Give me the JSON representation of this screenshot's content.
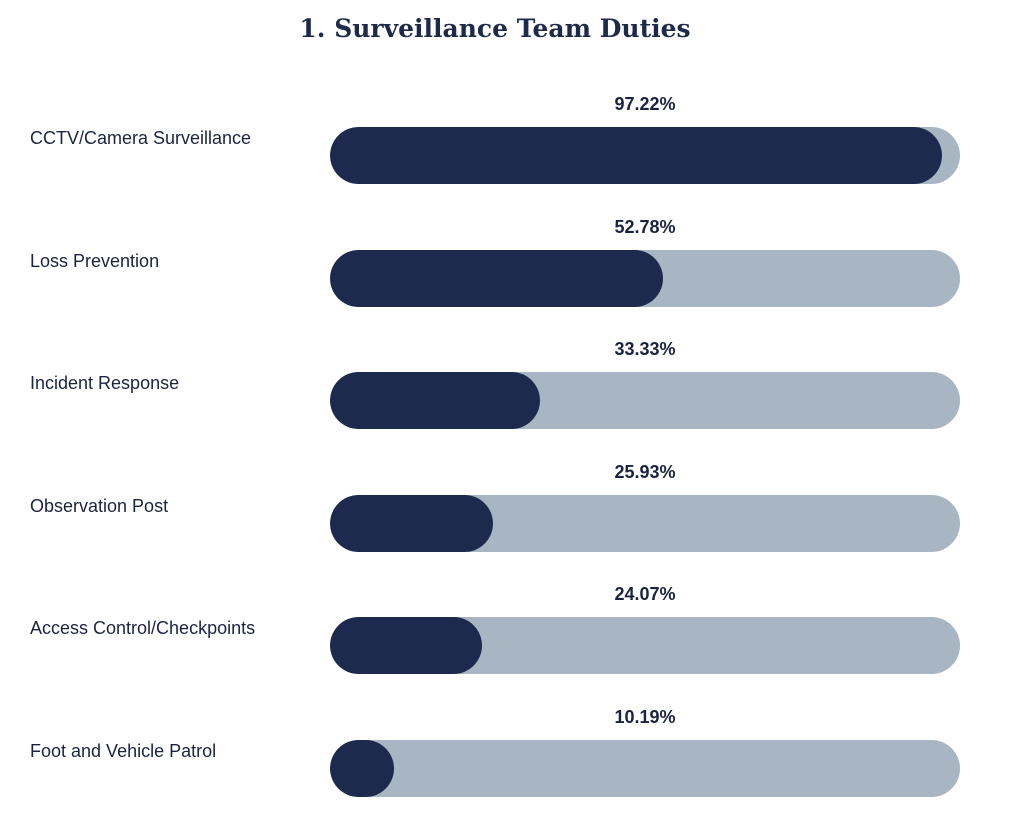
{
  "chart_data": {
    "type": "bar",
    "orientation": "horizontal",
    "title": "1. Surveillance Team Duties",
    "categories": [
      "CCTV/Camera Surveillance",
      "Loss Prevention",
      "Incident Response",
      "Observation Post",
      "Access Control/Checkpoints",
      "Foot and Vehicle Patrol"
    ],
    "values": [
      97.22,
      52.78,
      33.33,
      25.93,
      24.07,
      10.19
    ],
    "value_labels": [
      "97.22%",
      "52.78%",
      "33.33%",
      "25.93%",
      "24.07%",
      "10.19%"
    ],
    "xlim": [
      0,
      100
    ],
    "grid": false,
    "legend": "none",
    "colors": {
      "fill": "#1e2a4d",
      "track": "#a8b5c3",
      "text": "#1c2340"
    }
  }
}
